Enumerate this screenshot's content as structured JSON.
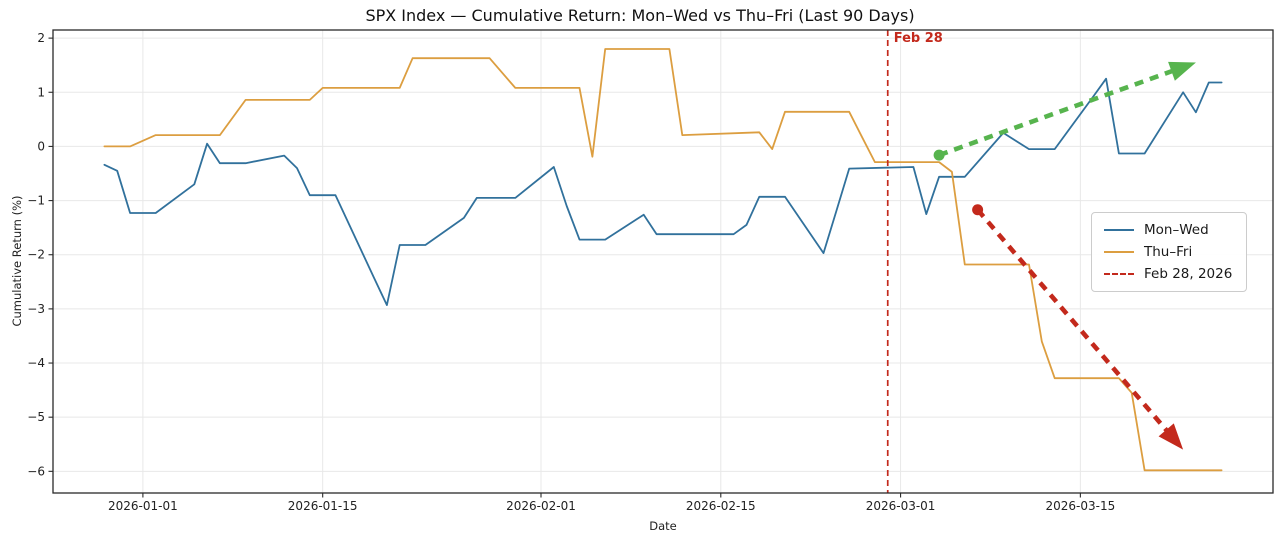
{
  "chart_data": {
    "type": "line",
    "title": "SPX Index — Cumulative Return: Mon–Wed vs Thu–Fri (Last 90 Days)",
    "xlabel": "Date",
    "ylabel": "Cumulative Return (%)",
    "grid": true,
    "legend_position": "center right",
    "x_tick_labels": [
      "2026-01-01",
      "2026-01-15",
      "2026-02-01",
      "2026-02-15",
      "2026-03-01",
      "2026-03-15"
    ],
    "y_tick_values": [
      2,
      1,
      0,
      -1,
      -2,
      -3,
      -4,
      -5,
      -6
    ],
    "y_tick_labels": [
      "2",
      "1",
      "0",
      "−1",
      "−2",
      "−3",
      "−4",
      "−5",
      "−6"
    ],
    "xlim": [
      "2025-12-25",
      "2026-03-30"
    ],
    "ylim": [
      -6.4,
      2.15
    ],
    "colors": {
      "mon_wed": "#31719c",
      "thu_fri": "#dc9e40",
      "red": "#c3291c",
      "green": "#57b44e",
      "grid": "#e8e8e8",
      "spine": "#2a2a2a"
    },
    "series": [
      {
        "name": "Mon–Wed",
        "color": "#31719c",
        "points": [
          [
            "2025-12-29",
            -0.34
          ],
          [
            "2025-12-30",
            -0.45
          ],
          [
            "2025-12-31",
            -1.23
          ],
          [
            "2026-01-02",
            -1.23
          ],
          [
            "2026-01-05",
            -0.7
          ],
          [
            "2026-01-06",
            0.05
          ],
          [
            "2026-01-07",
            -0.31
          ],
          [
            "2026-01-09",
            -0.31
          ],
          [
            "2026-01-12",
            -0.17
          ],
          [
            "2026-01-13",
            -0.4
          ],
          [
            "2026-01-14",
            -0.9
          ],
          [
            "2026-01-16",
            -0.9
          ],
          [
            "2026-01-19",
            -2.43
          ],
          [
            "2026-01-20",
            -2.93
          ],
          [
            "2026-01-21",
            -1.82
          ],
          [
            "2026-01-23",
            -1.82
          ],
          [
            "2026-01-26",
            -1.32
          ],
          [
            "2026-01-27",
            -0.95
          ],
          [
            "2026-01-30",
            -0.95
          ],
          [
            "2026-02-02",
            -0.38
          ],
          [
            "2026-02-03",
            -1.1
          ],
          [
            "2026-02-04",
            -1.72
          ],
          [
            "2026-02-06",
            -1.72
          ],
          [
            "2026-02-09",
            -1.26
          ],
          [
            "2026-02-10",
            -1.62
          ],
          [
            "2026-02-16",
            -1.62
          ],
          [
            "2026-02-17",
            -1.45
          ],
          [
            "2026-02-18",
            -0.93
          ],
          [
            "2026-02-20",
            -0.93
          ],
          [
            "2026-02-23",
            -1.97
          ],
          [
            "2026-02-24",
            -1.19
          ],
          [
            "2026-02-25",
            -0.41
          ],
          [
            "2026-03-02",
            -0.38
          ],
          [
            "2026-03-03",
            -1.25
          ],
          [
            "2026-03-04",
            -0.56
          ],
          [
            "2026-03-06",
            -0.56
          ],
          [
            "2026-03-09",
            0.25
          ],
          [
            "2026-03-11",
            -0.05
          ],
          [
            "2026-03-13",
            -0.05
          ],
          [
            "2026-03-16",
            0.92
          ],
          [
            "2026-03-17",
            1.25
          ],
          [
            "2026-03-18",
            -0.13
          ],
          [
            "2026-03-20",
            -0.13
          ],
          [
            "2026-03-23",
            1.0
          ],
          [
            "2026-03-24",
            0.63
          ],
          [
            "2026-03-25",
            1.18
          ],
          [
            "2026-03-26",
            1.18
          ]
        ]
      },
      {
        "name": "Thu–Fri",
        "color": "#dc9e40",
        "points": [
          [
            "2025-12-29",
            0.0
          ],
          [
            "2025-12-31",
            0.0
          ],
          [
            "2026-01-02",
            0.21
          ],
          [
            "2026-01-07",
            0.21
          ],
          [
            "2026-01-09",
            0.86
          ],
          [
            "2026-01-14",
            0.86
          ],
          [
            "2026-01-15",
            1.08
          ],
          [
            "2026-01-21",
            1.08
          ],
          [
            "2026-01-22",
            1.63
          ],
          [
            "2026-01-28",
            1.63
          ],
          [
            "2026-01-30",
            1.08
          ],
          [
            "2026-02-04",
            1.08
          ],
          [
            "2026-02-05",
            -0.19
          ],
          [
            "2026-02-06",
            1.8
          ],
          [
            "2026-02-11",
            1.8
          ],
          [
            "2026-02-12",
            0.21
          ],
          [
            "2026-02-18",
            0.26
          ],
          [
            "2026-02-19",
            -0.05
          ],
          [
            "2026-02-20",
            0.64
          ],
          [
            "2026-02-25",
            0.64
          ],
          [
            "2026-02-26",
            0.17
          ],
          [
            "2026-02-27",
            -0.29
          ],
          [
            "2026-03-04",
            -0.29
          ],
          [
            "2026-03-05",
            -0.47
          ],
          [
            "2026-03-06",
            -2.18
          ],
          [
            "2026-03-11",
            -2.18
          ],
          [
            "2026-03-12",
            -3.6
          ],
          [
            "2026-03-13",
            -4.28
          ],
          [
            "2026-03-18",
            -4.28
          ],
          [
            "2026-03-19",
            -4.55
          ],
          [
            "2026-03-20",
            -5.98
          ],
          [
            "2026-03-26",
            -5.98
          ]
        ]
      }
    ],
    "vline": {
      "date": "2026-02-28",
      "color": "#c3291c",
      "annotation": "Feb 28",
      "legend_label": "Feb 28, 2026"
    },
    "trend_arrows": [
      {
        "name": "uptrend",
        "color": "#57b44e",
        "from": [
          "2026-03-04",
          -0.16
        ],
        "to": [
          "2026-03-24",
          1.55
        ]
      },
      {
        "name": "downtrend",
        "color": "#c3291c",
        "from": [
          "2026-03-07",
          -1.17
        ],
        "to": [
          "2026-03-23",
          -5.6
        ]
      }
    ]
  }
}
